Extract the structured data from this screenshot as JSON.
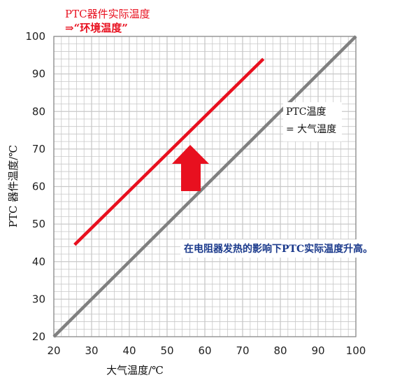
{
  "chart_data": {
    "type": "line",
    "xlabel": "大气温度/℃",
    "ylabel": "PTC 器件温度/℃",
    "xlim": [
      20,
      100
    ],
    "ylim": [
      20,
      100
    ],
    "x_ticks": [
      20,
      30,
      40,
      50,
      60,
      70,
      80,
      90,
      100
    ],
    "y_ticks": [
      20,
      30,
      40,
      50,
      60,
      70,
      80,
      90,
      100
    ],
    "grid": true,
    "series": [
      {
        "name": "PTC器件实际温度",
        "color": "#e8101f",
        "points": [
          [
            25.5,
            44.5
          ],
          [
            75.5,
            94
          ]
        ]
      },
      {
        "name": "PTC温度 = 大气温度",
        "color": "#808080",
        "points": [
          [
            20,
            20
          ],
          [
            100,
            100
          ]
        ]
      }
    ],
    "annotations": {
      "top_line1": "PTC器件实际温度",
      "top_line2": "⇒“环境温度”",
      "eq_line1": "PTC温度",
      "eq_line2": "= 大气温度",
      "rise": "在电阻器发热的影响下PTC实际温度升高。"
    },
    "colors": {
      "arrow": "#e8101f",
      "grid": "#c8c8c8",
      "axis": "#888888"
    }
  }
}
